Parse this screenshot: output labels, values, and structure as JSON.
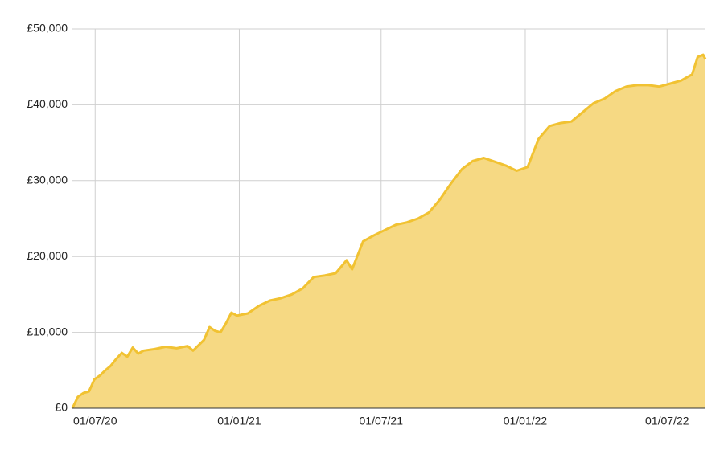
{
  "chart_data": {
    "type": "area",
    "color": "#f6d983",
    "line_color": "#f1c232",
    "grid": true,
    "x": [
      "2020-06-02",
      "2020-06-09",
      "2020-06-16",
      "2020-06-23",
      "2020-06-30",
      "2020-07-07",
      "2020-07-14",
      "2020-07-21",
      "2020-07-28",
      "2020-08-04",
      "2020-08-11",
      "2020-08-18",
      "2020-08-25",
      "2020-09-01",
      "2020-09-15",
      "2020-09-29",
      "2020-10-13",
      "2020-10-27",
      "2020-11-03",
      "2020-11-17",
      "2020-11-24",
      "2020-12-01",
      "2020-12-08",
      "2020-12-15",
      "2020-12-22",
      "2020-12-29",
      "2021-01-12",
      "2021-01-26",
      "2021-02-09",
      "2021-02-23",
      "2021-03-09",
      "2021-03-23",
      "2021-04-06",
      "2021-04-20",
      "2021-05-04",
      "2021-05-18",
      "2021-05-25",
      "2021-06-08",
      "2021-06-22",
      "2021-07-06",
      "2021-07-20",
      "2021-08-03",
      "2021-08-17",
      "2021-08-31",
      "2021-09-14",
      "2021-09-28",
      "2021-10-12",
      "2021-10-26",
      "2021-11-09",
      "2021-11-23",
      "2021-12-07",
      "2021-12-21",
      "2022-01-04",
      "2022-01-18",
      "2022-02-01",
      "2022-02-15",
      "2022-03-01",
      "2022-03-15",
      "2022-03-29",
      "2022-04-12",
      "2022-04-26",
      "2022-05-10",
      "2022-05-24",
      "2022-06-07",
      "2022-06-21",
      "2022-07-05",
      "2022-07-19",
      "2022-08-02",
      "2022-08-09",
      "2022-08-16",
      "2022-08-19"
    ],
    "values": [
      0,
      1500,
      2000,
      2200,
      3800,
      4300,
      5000,
      5600,
      6500,
      7300,
      6800,
      8000,
      7200,
      7600,
      7800,
      8100,
      7900,
      8200,
      7600,
      9000,
      10700,
      10200,
      10000,
      11200,
      12600,
      12200,
      12500,
      13500,
      14200,
      14500,
      15000,
      15800,
      17300,
      17500,
      17800,
      19500,
      18300,
      22000,
      22800,
      23500,
      24200,
      24500,
      25000,
      25800,
      27500,
      29600,
      31500,
      32600,
      33000,
      32500,
      32000,
      31300,
      31800,
      35500,
      37200,
      37600,
      37800,
      39000,
      40200,
      40800,
      41800,
      42400,
      42600,
      42600,
      42400,
      42800,
      43200,
      44000,
      46300,
      46600,
      46000
    ],
    "xlim": [
      "2020-06-02",
      "2022-08-19"
    ],
    "xticks": [
      {
        "value": "2020-07-01",
        "label": "01/07/20"
      },
      {
        "value": "2021-01-01",
        "label": "01/01/21"
      },
      {
        "value": "2021-07-01",
        "label": "01/07/21"
      },
      {
        "value": "2022-01-01",
        "label": "01/01/22"
      },
      {
        "value": "2022-07-01",
        "label": "01/07/22"
      }
    ],
    "ylim": [
      0,
      50000
    ],
    "yticks": [
      {
        "value": 0,
        "label": "£0"
      },
      {
        "value": 10000,
        "label": "£10,000"
      },
      {
        "value": 20000,
        "label": "£20,000"
      },
      {
        "value": 30000,
        "label": "£30,000"
      },
      {
        "value": 40000,
        "label": "£40,000"
      },
      {
        "value": 50000,
        "label": "£50,000"
      }
    ]
  }
}
